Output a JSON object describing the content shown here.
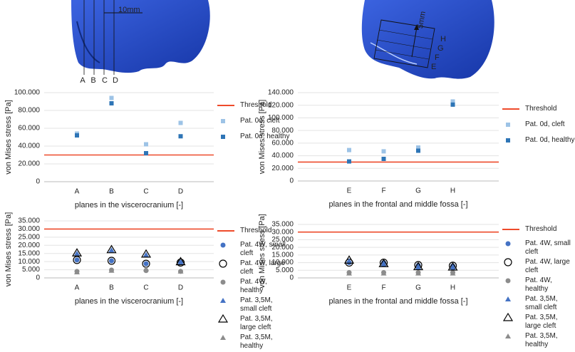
{
  "images": [
    {
      "labels": [
        "10mm",
        "A",
        "B",
        "C",
        "D"
      ]
    },
    {
      "labels": [
        "5mm",
        "H",
        "G",
        "F",
        "E"
      ]
    }
  ],
  "chart_data": [
    {
      "type": "scatter",
      "y_label": "von Mises stress [Pa]",
      "x_label": "planes in the viscerocranium [-]",
      "categories": [
        "A",
        "B",
        "C",
        "D"
      ],
      "ylim": [
        0,
        100000
      ],
      "yticks": [
        0,
        {
          "value": 20000,
          "label": "20.000"
        },
        {
          "value": 40000,
          "label": "40.000"
        },
        {
          "value": 60000,
          "label": "60.000"
        },
        {
          "value": 80000,
          "label": "80.000"
        },
        {
          "value": 100000,
          "label": "100.000"
        }
      ],
      "grid": true,
      "threshold": {
        "name": "Threshold",
        "value": 30000,
        "color": "#ee4b2b"
      },
      "series": [
        {
          "name": "Pat. 0d, cleft",
          "color": "#9dc3e6",
          "marker": "square",
          "values": [
            54000,
            94000,
            42000,
            66000
          ]
        },
        {
          "name": "Pat. 0d, healthy",
          "color": "#2e75b6",
          "marker": "square",
          "values": [
            52000,
            88000,
            32000,
            51000
          ]
        }
      ]
    },
    {
      "type": "scatter",
      "y_label": "von Mises stress [Pa]",
      "x_label": "planes in the frontal and middle fossa [-]",
      "categories": [
        "E",
        "F",
        "G",
        "H"
      ],
      "ylim": [
        0,
        140000
      ],
      "yticks": [
        0,
        {
          "value": 20000,
          "label": "20.000"
        },
        {
          "value": 40000,
          "label": "40.000"
        },
        {
          "value": 60000,
          "label": "60.000"
        },
        {
          "value": 80000,
          "label": "80.000"
        },
        {
          "value": 100000,
          "label": "100.000"
        },
        {
          "value": 120000,
          "label": "120.000"
        },
        {
          "value": 140000,
          "label": "140.000"
        }
      ],
      "grid": true,
      "threshold": {
        "name": "Threshold",
        "value": 30000,
        "color": "#ee4b2b"
      },
      "series": [
        {
          "name": "Pat. 0d, cleft",
          "color": "#9dc3e6",
          "marker": "square",
          "values": [
            49000,
            47000,
            53000,
            126000
          ]
        },
        {
          "name": "Pat. 0d, healthy",
          "color": "#2e75b6",
          "marker": "square",
          "values": [
            31000,
            35000,
            48000,
            121000
          ]
        }
      ]
    },
    {
      "type": "scatter",
      "y_label": "von Mises stress [Pa]",
      "x_label": "planes in the viscerocranium [-]",
      "categories": [
        "A",
        "B",
        "C",
        "D"
      ],
      "ylim": [
        0,
        35000
      ],
      "yticks": [
        0,
        {
          "value": 5000,
          "label": "5.000"
        },
        {
          "value": 10000,
          "label": "10.000"
        },
        {
          "value": 15000,
          "label": "15.000"
        },
        {
          "value": 20000,
          "label": "20.000"
        },
        {
          "value": 25000,
          "label": "25.000"
        },
        {
          "value": 30000,
          "label": "30.000"
        },
        {
          "value": 35000,
          "label": "35.000"
        }
      ],
      "grid": true,
      "threshold": {
        "name": "Threshold",
        "value": 30000,
        "color": "#ee4b2b"
      },
      "series": [
        {
          "name": "Pat. 4W, small cleft",
          "color": "#4472c4",
          "marker": "circle",
          "values": [
            11000,
            10500,
            8700,
            9500
          ]
        },
        {
          "name": "Pat. 4W, large cleft",
          "color": "#000000",
          "marker": "circle-open",
          "values": [
            11000,
            10500,
            8700,
            9400
          ]
        },
        {
          "name": "Pat. 4W, healthy",
          "color": "#8c8c8c",
          "marker": "circle",
          "values": [
            4000,
            4800,
            4500,
            4000
          ]
        },
        {
          "name": "Pat. 3,5M, small cleft",
          "color": "#4472c4",
          "marker": "triangle",
          "values": [
            15000,
            17000,
            14200,
            9500
          ]
        },
        {
          "name": "Pat. 3,5M, large cleft",
          "color": "#000000",
          "marker": "triangle-open",
          "values": [
            15200,
            17200,
            14500,
            9800
          ]
        },
        {
          "name": "Pat. 3,5M, healthy",
          "color": "#8c8c8c",
          "marker": "triangle",
          "values": [
            3500,
            4500,
            5500,
            4000
          ]
        }
      ]
    },
    {
      "type": "scatter",
      "y_label": "von Mises stress [Pa]",
      "x_label": "planes in the frontal and middle fossa [-]",
      "categories": [
        "E",
        "F",
        "G",
        "H"
      ],
      "ylim": [
        0,
        35000
      ],
      "yticks": [
        0,
        {
          "value": 5000,
          "label": "5.000"
        },
        {
          "value": 10000,
          "label": "10.000"
        },
        {
          "value": 15000,
          "label": "15.000"
        },
        {
          "value": 20000,
          "label": "20.000"
        },
        {
          "value": 25000,
          "label": "25.000"
        },
        {
          "value": 30000,
          "label": "30.000"
        },
        {
          "value": 35000,
          "label": "35.000"
        }
      ],
      "grid": true,
      "threshold": {
        "name": "Threshold",
        "value": 30000,
        "color": "#ee4b2b"
      },
      "series": [
        {
          "name": "Pat. 4W, small cleft",
          "color": "#4472c4",
          "marker": "circle",
          "values": [
            10000,
            10000,
            8200,
            7800
          ]
        },
        {
          "name": "Pat. 4W, large cleft",
          "color": "#000000",
          "marker": "circle-open",
          "values": [
            10000,
            10000,
            8400,
            8000
          ]
        },
        {
          "name": "Pat. 4W, healthy",
          "color": "#8c8c8c",
          "marker": "circle",
          "values": [
            3500,
            3500,
            3500,
            3500
          ]
        },
        {
          "name": "Pat. 3,5M, small cleft",
          "color": "#4472c4",
          "marker": "triangle",
          "values": [
            11000,
            9000,
            7000,
            6800
          ]
        },
        {
          "name": "Pat. 3,5M, large cleft",
          "color": "#000000",
          "marker": "triangle-open",
          "values": [
            11500,
            9200,
            7200,
            7000
          ]
        },
        {
          "name": "Pat. 3,5M, healthy",
          "color": "#8c8c8c",
          "marker": "triangle",
          "values": [
            3000,
            3000,
            3000,
            3000
          ]
        }
      ]
    }
  ]
}
